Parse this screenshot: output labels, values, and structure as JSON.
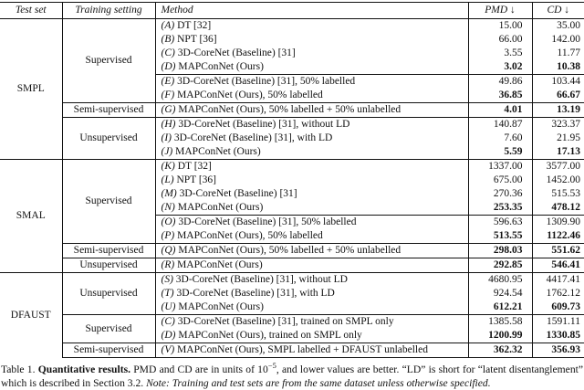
{
  "header": {
    "test_set": "Test set",
    "training": "Training setting",
    "method": "Method",
    "pmd": "PMD ↓",
    "cd": "CD ↓"
  },
  "rows": [
    {
      "test_set": "SMPL",
      "training": "Supervised",
      "tag": "(A)",
      "desc": "DT [32]",
      "pmd": "15.00",
      "cd": "35.00"
    },
    {
      "tag": "(B)",
      "desc": "NPT [36]",
      "pmd": "66.00",
      "cd": "142.00"
    },
    {
      "tag": "(C)",
      "desc": "3D-CoreNet (Baseline) [31]",
      "pmd": "3.55",
      "cd": "11.77"
    },
    {
      "tag": "(D)",
      "desc": "MAPConNet (Ours)",
      "pmd": "3.02",
      "cd": "10.38"
    },
    {
      "tag": "(E)",
      "desc": "3D-CoreNet (Baseline) [31], 50% labelled",
      "pmd": "49.86",
      "cd": "103.44"
    },
    {
      "tag": "(F)",
      "desc": "MAPConNet (Ours), 50% labelled",
      "pmd": "36.85",
      "cd": "66.67"
    },
    {
      "training": "Semi-supervised",
      "tag": "(G)",
      "desc": "MAPConNet (Ours), 50% labelled + 50% unlabelled",
      "pmd": "4.01",
      "cd": "13.19"
    },
    {
      "training": "Unsupervised",
      "tag": "(H)",
      "desc": "3D-CoreNet (Baseline) [31], without LD",
      "pmd": "140.87",
      "cd": "323.37"
    },
    {
      "tag": "(I)",
      "desc": "3D-CoreNet (Baseline) [31], with LD",
      "pmd": "7.60",
      "cd": "21.95"
    },
    {
      "tag": "(J)",
      "desc": "MAPConNet (Ours)",
      "pmd": "5.59",
      "cd": "17.13"
    },
    {
      "test_set": "SMAL",
      "training": "Supervised",
      "tag": "(K)",
      "desc": "DT [32]",
      "pmd": "1337.00",
      "cd": "3577.00"
    },
    {
      "tag": "(L)",
      "desc": "NPT [36]",
      "pmd": "675.00",
      "cd": "1452.00"
    },
    {
      "tag": "(M)",
      "desc": "3D-CoreNet (Baseline) [31]",
      "pmd": "270.36",
      "cd": "515.53"
    },
    {
      "tag": "(N)",
      "desc": "MAPConNet (Ours)",
      "pmd": "253.35",
      "cd": "478.12"
    },
    {
      "tag": "(O)",
      "desc": "3D-CoreNet (Baseline) [31], 50% labelled",
      "pmd": "596.63",
      "cd": "1309.90"
    },
    {
      "tag": "(P)",
      "desc": "MAPConNet (Ours), 50% labelled",
      "pmd": "513.55",
      "cd": "1122.46"
    },
    {
      "training": "Semi-supervised",
      "tag": "(Q)",
      "desc": "MAPConNet (Ours), 50% labelled + 50% unlabelled",
      "pmd": "298.03",
      "cd": "551.62"
    },
    {
      "training": "Unsupervised",
      "tag": "(R)",
      "desc": "MAPConNet (Ours)",
      "pmd": "292.85",
      "cd": "546.41"
    },
    {
      "test_set": "DFAUST",
      "training": "Unsupervised",
      "tag": "(S)",
      "desc": "3D-CoreNet (Baseline) [31], without LD",
      "pmd": "4680.95",
      "cd": "4417.41"
    },
    {
      "tag": "(T)",
      "desc": "3D-CoreNet (Baseline) [31], with LD",
      "pmd": "924.54",
      "cd": "1762.12"
    },
    {
      "tag": "(U)",
      "desc": "MAPConNet (Ours)",
      "pmd": "612.21",
      "cd": "609.73"
    },
    {
      "training": "Supervised",
      "tag": "(C)",
      "desc": "3D-CoreNet (Baseline) [31], trained on SMPL only",
      "pmd": "1385.58",
      "cd": "1591.11"
    },
    {
      "tag": "(D)",
      "desc": "MAPConNet (Ours), trained on SMPL only",
      "pmd": "1200.99",
      "cd": "1330.85"
    },
    {
      "training": "Semi-supervised",
      "tag": "(V)",
      "desc": "MAPConNet (Ours), SMPL labelled + DFAUST unlabelled",
      "pmd": "362.32",
      "cd": "356.93"
    }
  ],
  "caption": {
    "label": "Table 1.",
    "title": "Quantitative results.",
    "body1": "PMD and CD are in units of 10",
    "sup": "−5",
    "body2": ", and lower values are better. “LD” is short for “latent disentanglement” which is described in Section 3.2.",
    "note": "Note: Training and test sets are from the same dataset unless otherwise specified."
  }
}
